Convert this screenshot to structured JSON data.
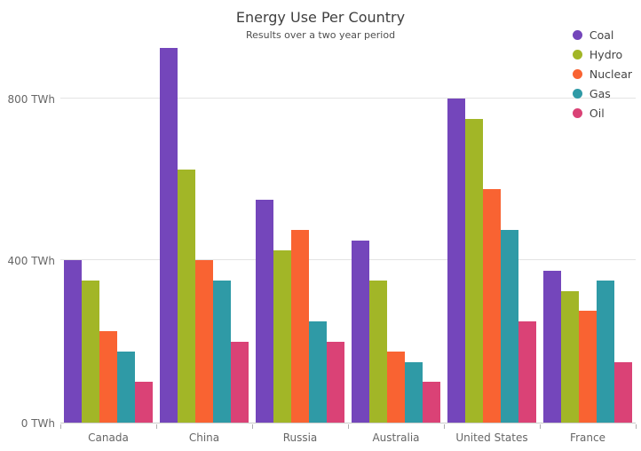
{
  "chart_data": {
    "type": "bar",
    "title": "Energy Use Per Country",
    "subtitle": "Results over a two year period",
    "categories": [
      "Canada",
      "China",
      "Russia",
      "Australia",
      "United States",
      "France"
    ],
    "series": [
      {
        "name": "Coal",
        "color": "#7446BB",
        "values": [
          400,
          925,
          550,
          450,
          800,
          375
        ]
      },
      {
        "name": "Hydro",
        "color": "#A2B627",
        "values": [
          350,
          625,
          425,
          350,
          750,
          325
        ]
      },
      {
        "name": "Nuclear",
        "color": "#F96332",
        "values": [
          225,
          400,
          475,
          175,
          575,
          275
        ]
      },
      {
        "name": "Gas",
        "color": "#2F9AA6",
        "values": [
          175,
          350,
          250,
          150,
          475,
          350
        ]
      },
      {
        "name": "Oil",
        "color": "#DA4276",
        "values": [
          100,
          200,
          200,
          100,
          250,
          150
        ]
      }
    ],
    "y_axis": {
      "unit": "TWh",
      "ticks": [
        {
          "value": 0,
          "label": "0 TWh"
        },
        {
          "value": 400,
          "label": "400 TWh"
        },
        {
          "value": 800,
          "label": "800 TWh"
        }
      ],
      "max": 957
    },
    "xlabel": "",
    "ylabel": "",
    "legend_position": "top-right",
    "grid": "horizontal-only",
    "colors": {
      "background": "#FFFFFF",
      "axis_line": "#CCCCCC",
      "gridline": "#E3E3E3",
      "tick_mark": "#B0B0B0",
      "axis_text": "#666666",
      "title_text": "#3F3F3F",
      "legend_text": "#444444"
    }
  }
}
